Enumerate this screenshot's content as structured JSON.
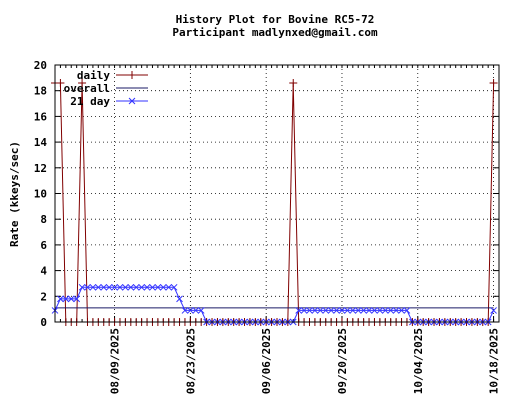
{
  "chart_data": {
    "type": "line",
    "title": "History Plot for Bovine RC5-72",
    "subtitle": "Participant madlynxed@gmail.com",
    "ylabel": "Rate (kkeys/sec)",
    "xlabel": "",
    "ylim": [
      0,
      20
    ],
    "yticks": [
      "0",
      "2",
      "4",
      "6",
      "8",
      "10",
      "12",
      "14",
      "16",
      "18",
      "20"
    ],
    "xrange": [
      "2025-07-29",
      "2025-10-19"
    ],
    "xticks": [
      "08/09/2025",
      "08/23/2025",
      "09/06/2025",
      "09/20/2025",
      "10/04/2025",
      "10/18/2025"
    ],
    "grid": true,
    "legend_position": "top-left",
    "series": [
      {
        "name": "daily",
        "color": "#800000",
        "marker": "plus",
        "x": [
          "2025-07-29",
          "2025-07-30",
          "2025-07-31",
          "2025-08-01",
          "2025-08-02",
          "2025-08-03",
          "2025-08-04",
          "2025-08-05",
          "2025-08-06",
          "2025-08-07",
          "2025-08-08",
          "2025-08-09",
          "2025-08-10",
          "2025-08-11",
          "2025-08-12",
          "2025-08-13",
          "2025-08-14",
          "2025-08-15",
          "2025-08-16",
          "2025-08-17",
          "2025-08-18",
          "2025-08-19",
          "2025-08-20",
          "2025-08-21",
          "2025-08-22",
          "2025-08-23",
          "2025-08-24",
          "2025-08-25",
          "2025-08-26",
          "2025-08-27",
          "2025-08-28",
          "2025-08-29",
          "2025-08-30",
          "2025-08-31",
          "2025-09-01",
          "2025-09-02",
          "2025-09-03",
          "2025-09-04",
          "2025-09-05",
          "2025-09-06",
          "2025-09-07",
          "2025-09-08",
          "2025-09-09",
          "2025-09-10",
          "2025-09-11",
          "2025-09-12",
          "2025-09-13",
          "2025-09-14",
          "2025-09-15",
          "2025-09-16",
          "2025-09-17",
          "2025-09-18",
          "2025-09-19",
          "2025-09-20",
          "2025-09-21",
          "2025-09-22",
          "2025-09-23",
          "2025-09-24",
          "2025-09-25",
          "2025-09-26",
          "2025-09-27",
          "2025-09-28",
          "2025-09-29",
          "2025-09-30",
          "2025-10-01",
          "2025-10-02",
          "2025-10-03",
          "2025-10-04",
          "2025-10-05",
          "2025-10-06",
          "2025-10-07",
          "2025-10-08",
          "2025-10-09",
          "2025-10-10",
          "2025-10-11",
          "2025-10-12",
          "2025-10-13",
          "2025-10-14",
          "2025-10-15",
          "2025-10-16",
          "2025-10-17",
          "2025-10-18"
        ],
        "values": [
          18.6,
          18.6,
          0,
          0,
          0,
          18.6,
          0,
          0,
          0,
          0,
          0,
          0,
          0,
          0,
          0,
          0,
          0,
          0,
          0,
          0,
          0,
          0,
          0,
          0,
          0,
          0,
          0,
          0,
          0,
          0,
          0,
          0,
          0,
          0,
          0,
          0,
          0,
          0,
          0,
          0,
          0,
          0,
          0,
          0,
          18.6,
          0,
          0,
          0,
          0,
          0,
          0,
          0,
          0,
          0,
          0,
          0,
          0,
          0,
          0,
          0,
          0,
          0,
          0,
          0,
          0,
          0,
          0,
          0,
          0,
          0,
          0,
          0,
          0,
          0,
          0,
          0,
          0,
          0,
          0,
          0,
          0,
          18.6
        ]
      },
      {
        "name": "overall",
        "color": "#1a1a66",
        "marker": "none",
        "x": [
          "2025-07-29",
          "2025-10-18"
        ],
        "values": [
          1.1,
          1.1
        ]
      },
      {
        "name": "21 day",
        "color": "#3333ff",
        "marker": "cross",
        "x": [
          "2025-07-29",
          "2025-07-30",
          "2025-07-31",
          "2025-08-01",
          "2025-08-02",
          "2025-08-03",
          "2025-08-04",
          "2025-08-05",
          "2025-08-06",
          "2025-08-07",
          "2025-08-08",
          "2025-08-09",
          "2025-08-10",
          "2025-08-11",
          "2025-08-12",
          "2025-08-13",
          "2025-08-14",
          "2025-08-15",
          "2025-08-16",
          "2025-08-17",
          "2025-08-18",
          "2025-08-19",
          "2025-08-20",
          "2025-08-21",
          "2025-08-22",
          "2025-08-23",
          "2025-08-24",
          "2025-08-25",
          "2025-08-26",
          "2025-08-27",
          "2025-08-28",
          "2025-08-29",
          "2025-08-30",
          "2025-08-31",
          "2025-09-01",
          "2025-09-02",
          "2025-09-03",
          "2025-09-04",
          "2025-09-05",
          "2025-09-06",
          "2025-09-07",
          "2025-09-08",
          "2025-09-09",
          "2025-09-10",
          "2025-09-11",
          "2025-09-12",
          "2025-09-13",
          "2025-09-14",
          "2025-09-15",
          "2025-09-16",
          "2025-09-17",
          "2025-09-18",
          "2025-09-19",
          "2025-09-20",
          "2025-09-21",
          "2025-09-22",
          "2025-09-23",
          "2025-09-24",
          "2025-09-25",
          "2025-09-26",
          "2025-09-27",
          "2025-09-28",
          "2025-09-29",
          "2025-09-30",
          "2025-10-01",
          "2025-10-02",
          "2025-10-03",
          "2025-10-04",
          "2025-10-05",
          "2025-10-06",
          "2025-10-07",
          "2025-10-08",
          "2025-10-09",
          "2025-10-10",
          "2025-10-11",
          "2025-10-12",
          "2025-10-13",
          "2025-10-14",
          "2025-10-15",
          "2025-10-16",
          "2025-10-17",
          "2025-10-18"
        ],
        "values": [
          0.9,
          1.8,
          1.8,
          1.8,
          1.8,
          2.7,
          2.7,
          2.7,
          2.7,
          2.7,
          2.7,
          2.7,
          2.7,
          2.7,
          2.7,
          2.7,
          2.7,
          2.7,
          2.7,
          2.7,
          2.7,
          2.7,
          2.7,
          1.8,
          0.9,
          0.9,
          0.9,
          0.9,
          0,
          0,
          0,
          0,
          0,
          0,
          0,
          0,
          0,
          0,
          0,
          0,
          0,
          0,
          0,
          0,
          0,
          0.9,
          0.9,
          0.9,
          0.9,
          0.9,
          0.9,
          0.9,
          0.9,
          0.9,
          0.9,
          0.9,
          0.9,
          0.9,
          0.9,
          0.9,
          0.9,
          0.9,
          0.9,
          0.9,
          0.9,
          0.9,
          0,
          0,
          0,
          0,
          0,
          0,
          0,
          0,
          0,
          0,
          0,
          0,
          0,
          0,
          0,
          0.9
        ]
      }
    ]
  }
}
